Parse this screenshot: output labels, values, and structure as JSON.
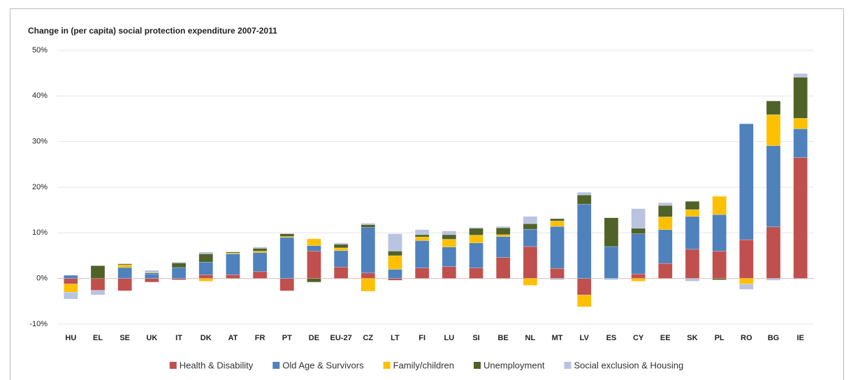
{
  "chart_data": {
    "type": "stacked_bar",
    "title": "Change in (per capita) social protection expenditure 2007-2011",
    "categories": [
      "HU",
      "EL",
      "SE",
      "UK",
      "IT",
      "DK",
      "AT",
      "FR",
      "PT",
      "DE",
      "EU-27",
      "CZ",
      "LT",
      "FI",
      "LU",
      "SI",
      "BE",
      "NL",
      "MT",
      "LV",
      "ES",
      "CY",
      "EE",
      "SK",
      "PL",
      "RO",
      "BG",
      "IE"
    ],
    "series": [
      {
        "name": "Health & Disability",
        "color": "#c0504d",
        "values": [
          -1.2,
          -2.6,
          -2.7,
          -0.8,
          -0.3,
          0.8,
          0.8,
          1.5,
          -2.7,
          6.0,
          2.5,
          1.2,
          -0.4,
          2.3,
          2.6,
          2.3,
          4.6,
          7.0,
          2.2,
          -3.6,
          0,
          1.0,
          3.3,
          6.4,
          6.0,
          8.5,
          11.3,
          26.5
        ]
      },
      {
        "name": "Old Age & Survivors",
        "color": "#4f81bd",
        "values": [
          0.7,
          0,
          2.4,
          1.0,
          2.4,
          2.8,
          4.6,
          4.2,
          9.0,
          1.2,
          3.6,
          10.0,
          2.0,
          6.0,
          4.3,
          5.5,
          4.6,
          3.8,
          9.2,
          16.3,
          7.0,
          8.8,
          7.4,
          7.2,
          8.0,
          25.4,
          17.8,
          6.3
        ]
      },
      {
        "name": "Family/children",
        "color": "#ffc000",
        "values": [
          -1.8,
          0,
          0.6,
          0,
          0,
          -0.6,
          0.2,
          0.3,
          0.2,
          1.5,
          0.6,
          -2.8,
          3.0,
          0.8,
          1.7,
          1.7,
          0.4,
          -1.5,
          1.2,
          -2.6,
          0,
          -0.6,
          2.8,
          1.5,
          4.0,
          -1.2,
          6.8,
          2.3
        ]
      },
      {
        "name": "Unemployment",
        "color": "#4f6228",
        "values": [
          0,
          2.8,
          0.2,
          0.2,
          1.0,
          1.8,
          0.2,
          0.6,
          0.6,
          -0.8,
          0.8,
          0.6,
          1.0,
          0.5,
          1.0,
          1.5,
          1.5,
          1.2,
          0.5,
          2.0,
          6.3,
          1.2,
          2.5,
          1.8,
          -0.3,
          0,
          3.0,
          9.0
        ]
      },
      {
        "name": "Social exclusion & Housing",
        "color": "#b8c4e0",
        "values": [
          -1.5,
          -1.0,
          0.1,
          0.6,
          0.2,
          0.4,
          0.1,
          0.3,
          0,
          0,
          0.3,
          0.3,
          3.8,
          1.1,
          0.8,
          0.2,
          0.3,
          1.6,
          -0.3,
          0.6,
          -0.3,
          4.3,
          0.6,
          -0.6,
          0,
          -1.2,
          -0.4,
          0.8
        ]
      }
    ],
    "ylim": [
      -10,
      50
    ],
    "yticks": [
      {
        "value": -10,
        "label": "-10%"
      },
      {
        "value": 0,
        "label": "0%"
      },
      {
        "value": 10,
        "label": "10%"
      },
      {
        "value": 20,
        "label": "20%"
      },
      {
        "value": 30,
        "label": "30%"
      },
      {
        "value": 40,
        "label": "40%"
      },
      {
        "value": 50,
        "label": "50%"
      }
    ],
    "grid": true,
    "legend": "bottom"
  }
}
